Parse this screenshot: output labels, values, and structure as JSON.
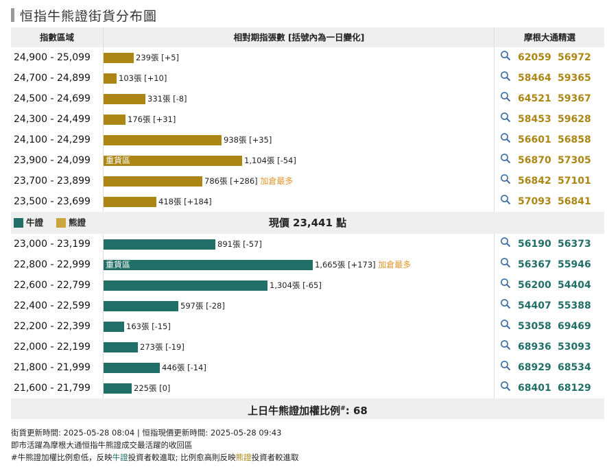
{
  "title": "恒指牛熊證街貨分布圖",
  "header": {
    "col1": "指數區域",
    "col2": "相對期指張數 [括號內為一日變化]",
    "col3": "摩根大通精選"
  },
  "bear_rows": [
    {
      "range": "24,900 - 25,099",
      "contracts": 239,
      "label": "239張 [+5]",
      "inside": "",
      "extra": "",
      "codes": [
        "62059",
        "56972"
      ]
    },
    {
      "range": "24,700 - 24,899",
      "contracts": 103,
      "label": "103張 [+10]",
      "inside": "",
      "extra": "",
      "codes": [
        "58464",
        "59365"
      ]
    },
    {
      "range": "24,500 - 24,699",
      "contracts": 331,
      "label": "331張 [-8]",
      "inside": "",
      "extra": "",
      "codes": [
        "64521",
        "59367"
      ]
    },
    {
      "range": "24,300 - 24,499",
      "contracts": 176,
      "label": "176張 [+31]",
      "inside": "",
      "extra": "",
      "codes": [
        "58453",
        "59628"
      ]
    },
    {
      "range": "24,100 - 24,299",
      "contracts": 938,
      "label": "938張 [+35]",
      "inside": "",
      "extra": "",
      "codes": [
        "56601",
        "56858"
      ]
    },
    {
      "range": "23,900 - 24,099",
      "contracts": 1104,
      "label": "1,104張 [-54]",
      "inside": "重貨區",
      "extra": "",
      "codes": [
        "56870",
        "57305"
      ]
    },
    {
      "range": "23,700 - 23,899",
      "contracts": 786,
      "label": "786張 [+286]",
      "inside": "",
      "extra": "加倉最多",
      "codes": [
        "56842",
        "57101"
      ]
    },
    {
      "range": "23,500 - 23,699",
      "contracts": 418,
      "label": "418張 [+184]",
      "inside": "",
      "extra": "",
      "codes": [
        "57093",
        "56841"
      ]
    }
  ],
  "legend": {
    "bull": "牛證",
    "bear": "熊證",
    "bull_color": "#216f66",
    "bear_color": "#c9a63f"
  },
  "current_price": "現價 23,441 點",
  "bull_rows": [
    {
      "range": "23,000 - 23,199",
      "contracts": 891,
      "label": "891張 [-57]",
      "inside": "",
      "extra": "",
      "codes": [
        "56190",
        "56373"
      ]
    },
    {
      "range": "22,800 - 22,999",
      "contracts": 1665,
      "label": "1,665張 [+173]",
      "inside": "重貨區",
      "extra": "加倉最多",
      "codes": [
        "56367",
        "55946"
      ]
    },
    {
      "range": "22,600 - 22,799",
      "contracts": 1304,
      "label": "1,304張 [-65]",
      "inside": "",
      "extra": "",
      "codes": [
        "56200",
        "54404"
      ]
    },
    {
      "range": "22,400 - 22,599",
      "contracts": 597,
      "label": "597張 [-28]",
      "inside": "",
      "extra": "",
      "codes": [
        "54407",
        "55388"
      ]
    },
    {
      "range": "22,200 - 22,399",
      "contracts": 163,
      "label": "163張 [-15]",
      "inside": "",
      "extra": "",
      "codes": [
        "53058",
        "69469"
      ]
    },
    {
      "range": "22,000 - 22,199",
      "contracts": 273,
      "label": "273張 [-19]",
      "inside": "",
      "extra": "",
      "codes": [
        "68936",
        "53093"
      ]
    },
    {
      "range": "21,800 - 21,999",
      "contracts": 446,
      "label": "446張 [-14]",
      "inside": "",
      "extra": "",
      "codes": [
        "68929",
        "68534"
      ]
    },
    {
      "range": "21,600 - 21,799",
      "contracts": 225,
      "label": "225張 [0]",
      "inside": "",
      "extra": "",
      "codes": [
        "68401",
        "68129"
      ]
    }
  ],
  "ratio": {
    "label": "上日牛熊證加權比例",
    "mark": "#",
    "value": ": 68"
  },
  "footer": {
    "line1": "街貨更新時間: 2025-05-28 08:04   |   恒指現價更新時間: 2025-05-28 09:43",
    "line2": "即市活躍為摩根大通恒指牛熊證成交最活躍的收回區",
    "line3_a": "#牛熊證加權比例愈低，反映",
    "line3_bull": "牛證",
    "line3_b": "投資者較進取; 比例愈高則反映",
    "line3_bear": "熊證",
    "line3_c": "投資者較進取"
  },
  "colors": {
    "bear": "#ac8614",
    "bull": "#216f66",
    "accent": "#e8962b"
  }
}
